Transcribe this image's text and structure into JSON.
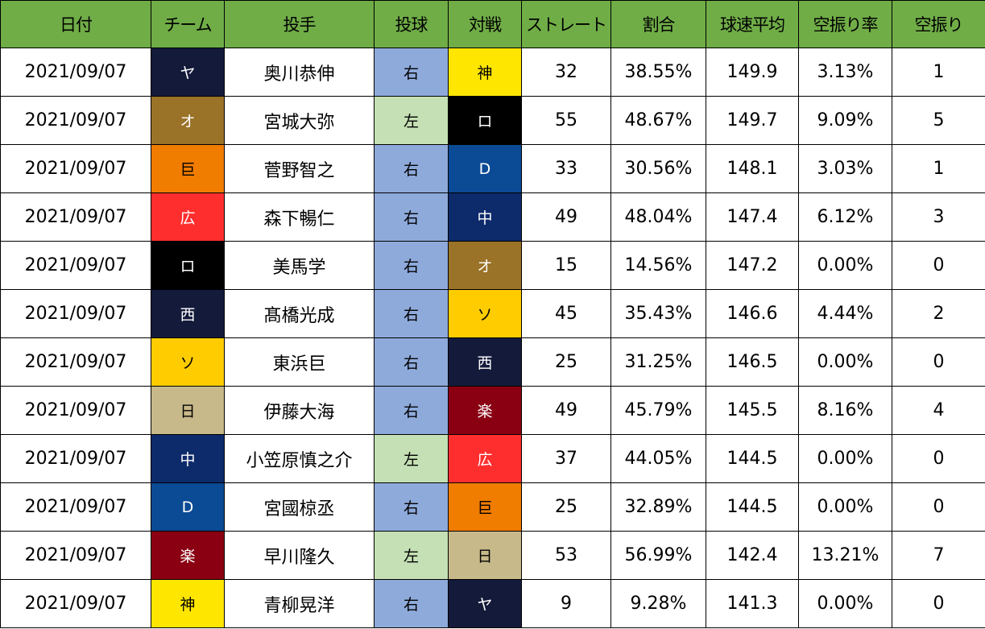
{
  "headers": [
    "日付",
    "チーム",
    "投手",
    "投球",
    "対戦",
    "ストレート",
    "割合",
    "球速平均",
    "空振り率",
    "空振り"
  ],
  "team_colors": {
    "ヤ": {
      "bg": "#141a3a",
      "fg": "#ffffff"
    },
    "オ": {
      "bg": "#9a7228",
      "fg": "#ffffff"
    },
    "巨": {
      "bg": "#f07c00",
      "fg": "#000000"
    },
    "広": {
      "bg": "#ff2e2e",
      "fg": "#ffffff"
    },
    "ロ": {
      "bg": "#000000",
      "fg": "#ffffff"
    },
    "西": {
      "bg": "#141a3a",
      "fg": "#ffffff"
    },
    "ソ": {
      "bg": "#ffcc00",
      "fg": "#000000"
    },
    "日": {
      "bg": "#c8b98a",
      "fg": "#000000"
    },
    "中": {
      "bg": "#0d2a6a",
      "fg": "#ffffff"
    },
    "D": {
      "bg": "#0b4a94",
      "fg": "#ffffff"
    },
    "楽": {
      "bg": "#8a0012",
      "fg": "#ffffff"
    },
    "神": {
      "bg": "#ffe600",
      "fg": "#000000"
    }
  },
  "hand_colors": {
    "右": "#8eaadb",
    "左": "#c5e0b4"
  },
  "header_color": "#70ad47",
  "rows": [
    {
      "date": "2021/09/07",
      "team": "ヤ",
      "pitcher": "奥川恭伸",
      "hand": "右",
      "opponent": "神",
      "straight": "32",
      "ratio": "38.55%",
      "speed": "149.9",
      "whiff_rate": "3.13%",
      "whiffs": "1"
    },
    {
      "date": "2021/09/07",
      "team": "オ",
      "pitcher": "宮城大弥",
      "hand": "左",
      "opponent": "ロ",
      "straight": "55",
      "ratio": "48.67%",
      "speed": "149.7",
      "whiff_rate": "9.09%",
      "whiffs": "5"
    },
    {
      "date": "2021/09/07",
      "team": "巨",
      "pitcher": "菅野智之",
      "hand": "右",
      "opponent": "D",
      "straight": "33",
      "ratio": "30.56%",
      "speed": "148.1",
      "whiff_rate": "3.03%",
      "whiffs": "1"
    },
    {
      "date": "2021/09/07",
      "team": "広",
      "pitcher": "森下暢仁",
      "hand": "右",
      "opponent": "中",
      "straight": "49",
      "ratio": "48.04%",
      "speed": "147.4",
      "whiff_rate": "6.12%",
      "whiffs": "3"
    },
    {
      "date": "2021/09/07",
      "team": "ロ",
      "pitcher": "美馬学",
      "hand": "右",
      "opponent": "オ",
      "straight": "15",
      "ratio": "14.56%",
      "speed": "147.2",
      "whiff_rate": "0.00%",
      "whiffs": "0"
    },
    {
      "date": "2021/09/07",
      "team": "西",
      "pitcher": "髙橋光成",
      "hand": "右",
      "opponent": "ソ",
      "straight": "45",
      "ratio": "35.43%",
      "speed": "146.6",
      "whiff_rate": "4.44%",
      "whiffs": "2"
    },
    {
      "date": "2021/09/07",
      "team": "ソ",
      "pitcher": "東浜巨",
      "hand": "右",
      "opponent": "西",
      "straight": "25",
      "ratio": "31.25%",
      "speed": "146.5",
      "whiff_rate": "0.00%",
      "whiffs": "0"
    },
    {
      "date": "2021/09/07",
      "team": "日",
      "pitcher": "伊藤大海",
      "hand": "右",
      "opponent": "楽",
      "straight": "49",
      "ratio": "45.79%",
      "speed": "145.5",
      "whiff_rate": "8.16%",
      "whiffs": "4"
    },
    {
      "date": "2021/09/07",
      "team": "中",
      "pitcher": "小笠原慎之介",
      "hand": "左",
      "opponent": "広",
      "straight": "37",
      "ratio": "44.05%",
      "speed": "144.5",
      "whiff_rate": "0.00%",
      "whiffs": "0"
    },
    {
      "date": "2021/09/07",
      "team": "D",
      "pitcher": "宮國椋丞",
      "hand": "右",
      "opponent": "巨",
      "straight": "25",
      "ratio": "32.89%",
      "speed": "144.5",
      "whiff_rate": "0.00%",
      "whiffs": "0"
    },
    {
      "date": "2021/09/07",
      "team": "楽",
      "pitcher": "早川隆久",
      "hand": "左",
      "opponent": "日",
      "straight": "53",
      "ratio": "56.99%",
      "speed": "142.4",
      "whiff_rate": "13.21%",
      "whiffs": "7"
    },
    {
      "date": "2021/09/07",
      "team": "神",
      "pitcher": "青柳晃洋",
      "hand": "右",
      "opponent": "ヤ",
      "straight": "9",
      "ratio": "9.28%",
      "speed": "141.3",
      "whiff_rate": "0.00%",
      "whiffs": "0"
    }
  ]
}
